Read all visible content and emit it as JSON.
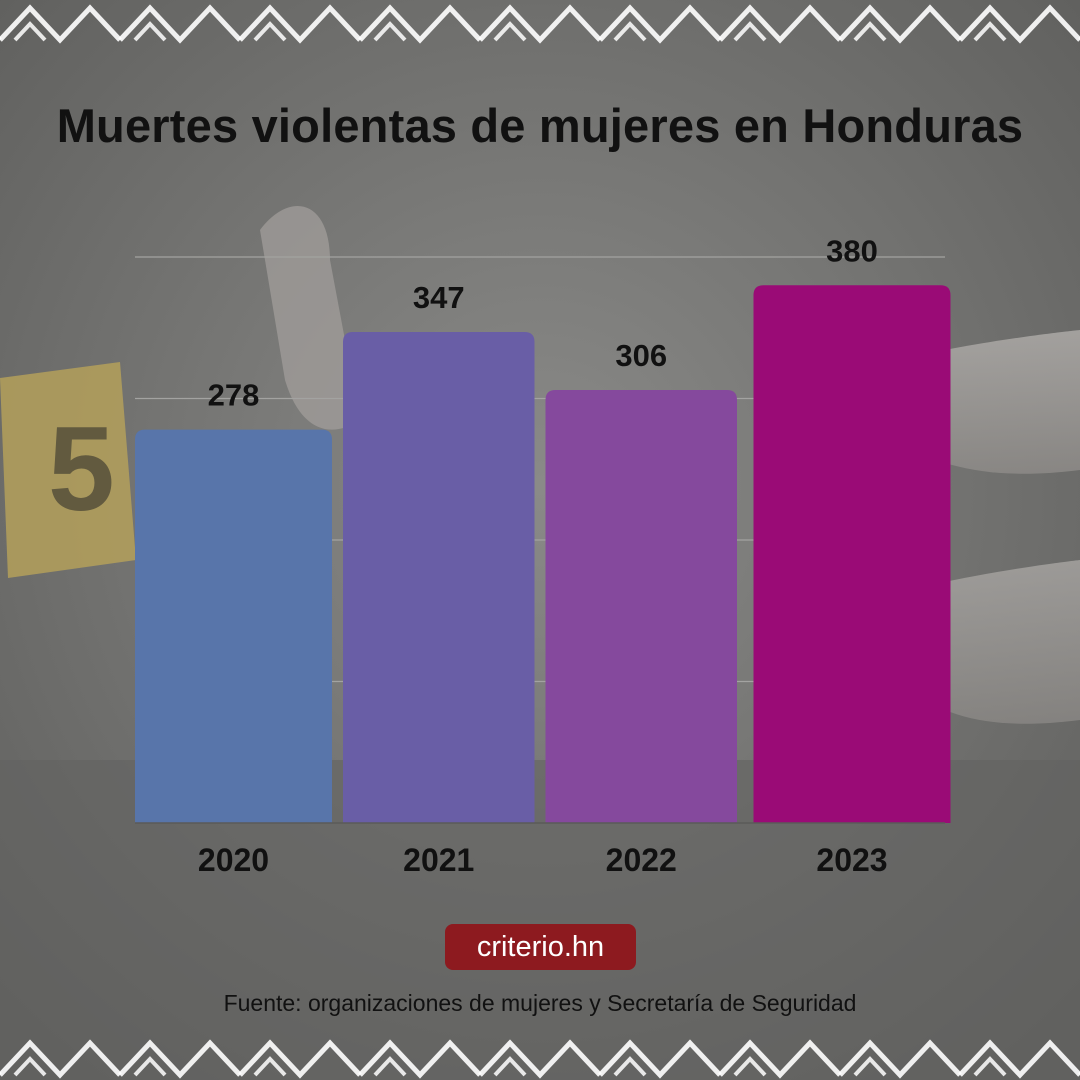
{
  "title": "Muertes violentas de mujeres en Honduras",
  "brand": "criterio.hn",
  "source": "Fuente: organizaciones de mujeres y Secretaría de Seguridad",
  "background": {
    "evidence_marker_number": "5"
  },
  "colors": {
    "background": "#7d7d7b",
    "pattern": "#ffffff",
    "brand_badge": "#8d1a1f",
    "gridline": "#a3a3a1",
    "axis": "#5a5a58",
    "bars": [
      "#5875aa",
      "#695ea6",
      "#85499d",
      "#9a0b76"
    ]
  },
  "chart_data": {
    "type": "bar",
    "title": "Muertes violentas de mujeres en Honduras",
    "categories": [
      "2020",
      "2021",
      "2022",
      "2023"
    ],
    "values": [
      278,
      347,
      306,
      380
    ],
    "xlabel": "",
    "ylabel": "",
    "ylim": [
      0,
      400
    ],
    "grid": true,
    "legend": "none"
  }
}
